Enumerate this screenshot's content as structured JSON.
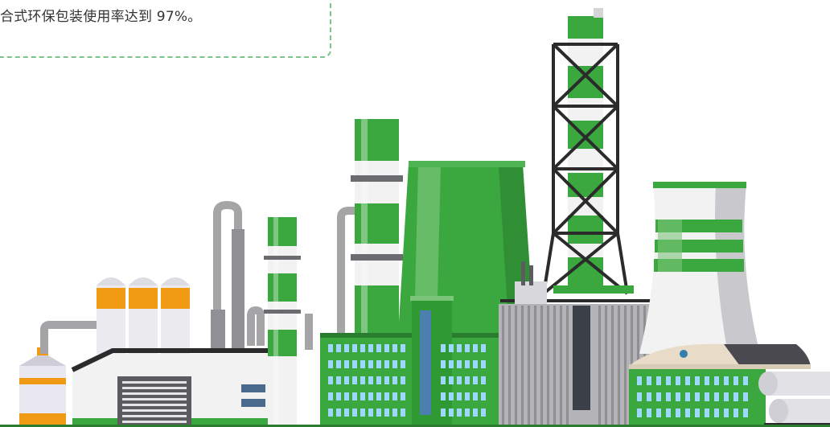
{
  "callout": {
    "text": "合式环保包装使用率达到 97%。"
  },
  "illustration": {
    "subject": "factory-skyline",
    "colors": {
      "green": "#3aa83e",
      "green_light": "#7bc57a",
      "green_dark": "#2a7d2e",
      "white": "#f2f2f2",
      "grey": "#a5a5a8",
      "grey_dark": "#5b5b60",
      "orange": "#f19a14",
      "black": "#2b2b2b"
    }
  }
}
